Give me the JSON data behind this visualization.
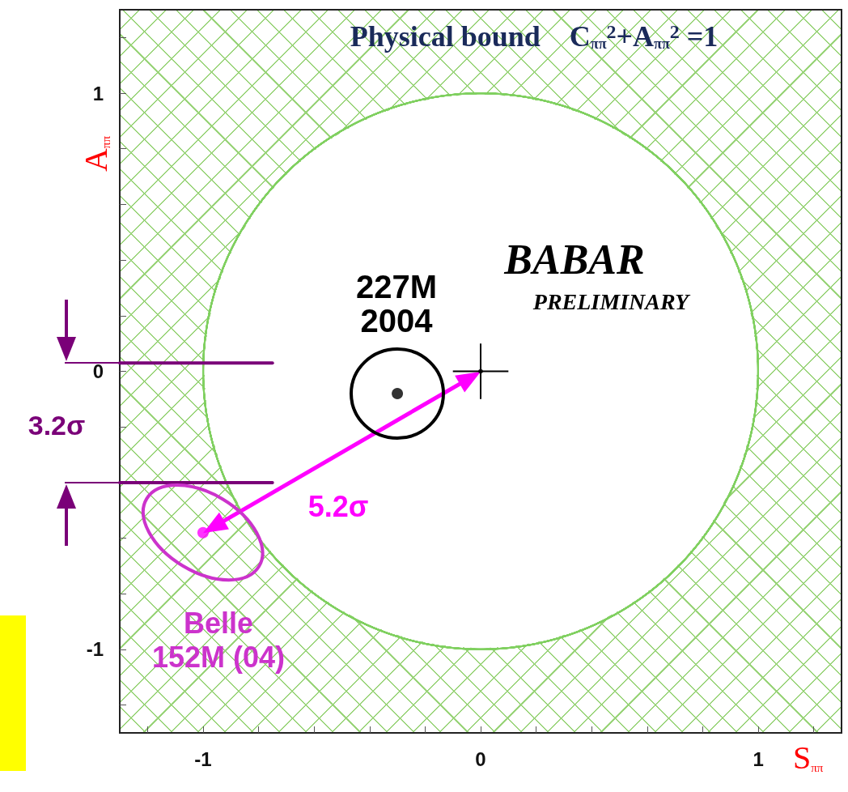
{
  "chart_data": {
    "type": "scatter",
    "title": "Physical bound    C$_{ππ}$$^{2}$+A$_{ππ}$$^{2}$ =1",
    "xlabel": "S$_{ππ}$",
    "ylabel": "A$_{ππ}$",
    "xlim": [
      -1.3,
      1.3
    ],
    "ylim": [
      -1.3,
      1.3
    ],
    "xticks": [
      {
        "value": -1.2,
        "label": null
      },
      -1,
      {
        "value": -0.8,
        "label": null
      },
      {
        "value": -0.6,
        "label": null
      },
      {
        "value": -0.4,
        "label": null
      },
      {
        "value": -0.2,
        "label": null
      },
      0,
      {
        "value": 0.2,
        "label": null
      },
      {
        "value": 0.4,
        "label": null
      },
      {
        "value": 0.6,
        "label": null
      },
      {
        "value": 0.8,
        "label": null
      },
      1,
      {
        "value": 1.2,
        "label": null
      }
    ],
    "yticks": [
      {
        "value": -1.2,
        "label": null
      },
      -1,
      {
        "value": -0.8,
        "label": null
      },
      {
        "value": -0.6,
        "label": null
      },
      {
        "value": -0.4,
        "label": null
      },
      {
        "value": -0.2,
        "label": null
      },
      0,
      {
        "value": 0.2,
        "label": null
      },
      {
        "value": 0.4,
        "label": null
      },
      {
        "value": 0.6,
        "label": null
      },
      {
        "value": 0.8,
        "label": null
      },
      1,
      {
        "value": 1.2,
        "label": null
      }
    ],
    "grid": false,
    "series": [
      {
        "color": "#000000",
        "marker": "circle",
        "x": [
          -0.3
        ],
        "values": [
          -0.08
        ]
      },
      {
        "color": "#ff00ff",
        "marker": "circle",
        "x": [
          -1.0
        ],
        "values": [
          -0.58
        ]
      },
      {
        "color": "#000000",
        "x": [
          0
        ],
        "values": [
          0
        ],
        "errors": [
          0.1
        ],
        "xerrors": [
          0.1
        ]
      },
      {
        "type": "line",
        "color": "#7a0078",
        "marker": "none",
        "x": [
          -1.3,
          -0.75
        ],
        "values": [
          0.03,
          0.03
        ]
      },
      {
        "type": "line",
        "color": "#7a0078",
        "marker": "none",
        "x": [
          -1.3,
          -0.75
        ],
        "values": [
          -0.4,
          -0.4
        ]
      }
    ],
    "annotations": [
      "227M\n2004",
      "BABAR",
      "PRELIMINARY",
      "5.2σ",
      "Belle\n152M (04)",
      "3.2σ"
    ]
  }
}
